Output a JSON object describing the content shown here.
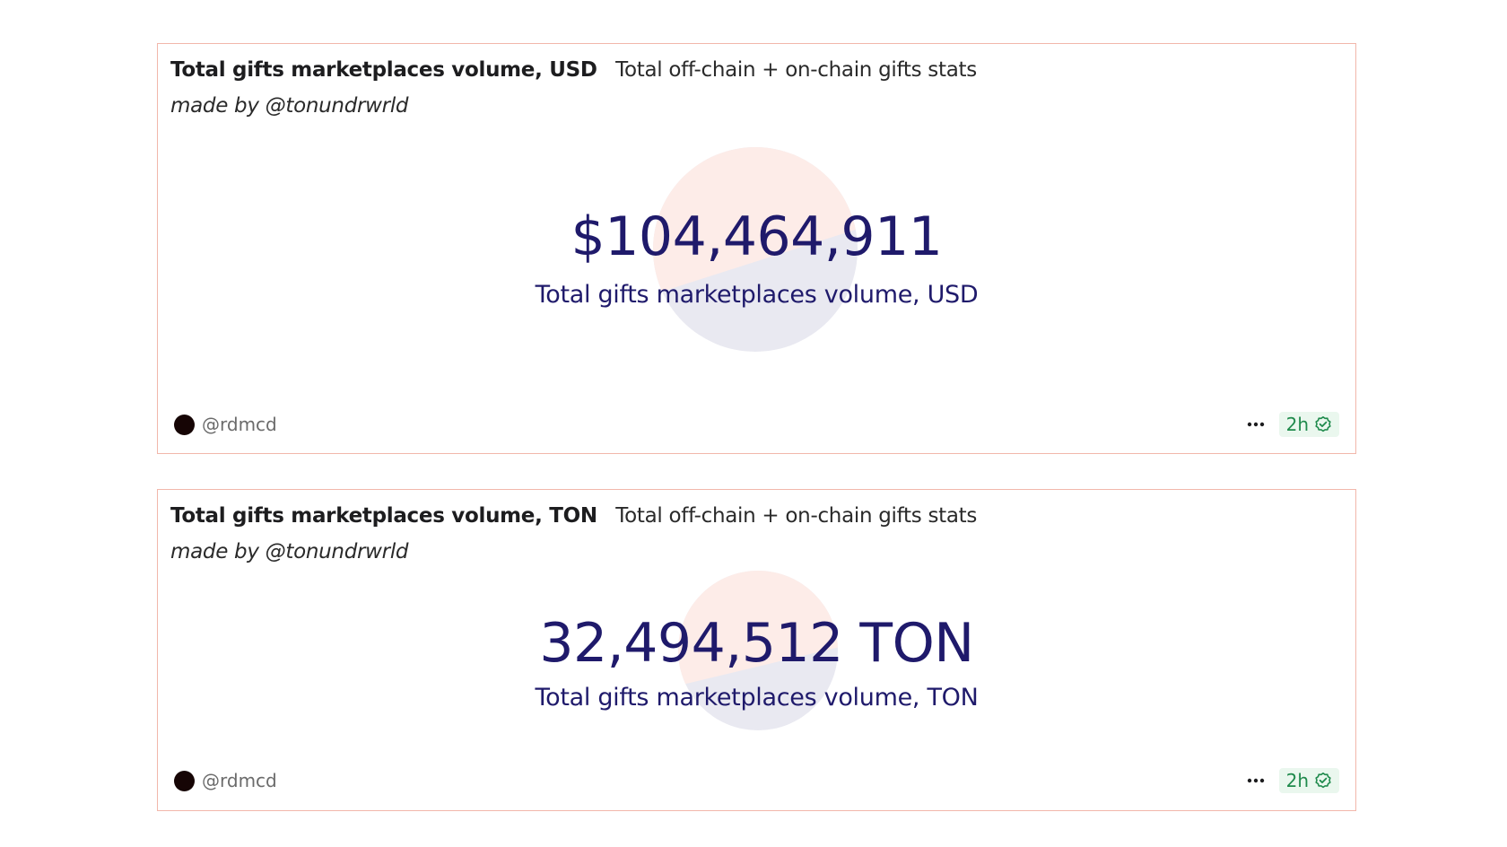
{
  "cards": [
    {
      "title": "Total gifts marketplaces volume, USD",
      "description": "Total off-chain + on-chain gifts stats",
      "credit": "made by @tonundrwrld",
      "value": "$104,464,911",
      "value_label": "Total gifts marketplaces volume, USD",
      "author": "@rdmcd",
      "freshness": "2h",
      "icons": [
        "more-icon",
        "check-circle-icon"
      ]
    },
    {
      "title": "Total gifts marketplaces volume, TON",
      "description": "Total off-chain + on-chain gifts stats",
      "credit": "made by @tonundrwrld",
      "value": "32,494,512 TON",
      "value_label": "Total gifts marketplaces volume, TON",
      "author": "@rdmcd",
      "freshness": "2h",
      "icons": [
        "more-icon",
        "check-circle-icon"
      ]
    }
  ],
  "colors": {
    "card_border": "#f2b7ab",
    "value_text": "#1f1a6b",
    "pie_top": "#fdece8",
    "pie_bottom": "#e9e9f1",
    "fresh_badge_bg": "#eaf7ee",
    "fresh_badge_text": "#1f8a4c"
  }
}
